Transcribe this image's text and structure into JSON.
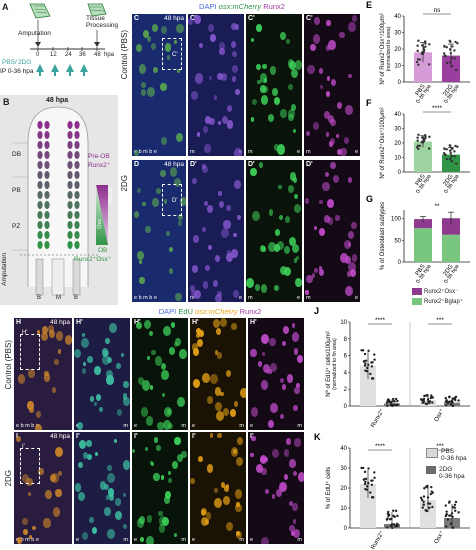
{
  "panel_a": {
    "label": "A",
    "amputation": "Amputation",
    "tissue_processing": "Tissue Processing",
    "ticks": [
      "0",
      "12",
      "24",
      "36",
      "48"
    ],
    "unit": "hpa",
    "treatment_pbs": "PBS",
    "treatment_2dg": "2DG",
    "ip_text": "IP 0-36 hpa"
  },
  "panel_b": {
    "label": "B",
    "time": "48 hpa",
    "zone_db": "DB",
    "zone_pb": "PB",
    "zone_pz": "PZ",
    "bone_b": "B",
    "bone_m": "M",
    "pre_ob": "Pre-OB",
    "pre_ob_marker": "Runx2⁺",
    "ob": "OB",
    "ob_marker": "Runx2⁺Osx⁺",
    "bar_top": "Runx2",
    "bar_bottom": "Osx",
    "amputation": "Amputation"
  },
  "panel_cd": {
    "header_dapi": "DAPI",
    "header_osx": "osx:mCherry",
    "header_runx2": "Runx2",
    "row_c": "Control (PBS)",
    "row_d": "2DG",
    "panels": [
      {
        "id": "C",
        "time": "48 hpa",
        "inset": "C'"
      },
      {
        "id": "C'",
        "time": ""
      },
      {
        "id": "C'",
        "time": ""
      },
      {
        "id": "C'",
        "time": ""
      },
      {
        "id": "D",
        "time": "48 hpa",
        "inset": "D'"
      },
      {
        "id": "D'",
        "time": ""
      },
      {
        "id": "D'",
        "time": ""
      },
      {
        "id": "D'",
        "time": ""
      }
    ],
    "bottom_small": "e b m b e",
    "bottom_me": [
      "m",
      "e"
    ]
  },
  "panel_hi": {
    "header_dapi": "DAPI",
    "header_edu": "EdU",
    "header_osx": "osx:mCherry",
    "header_runx2": "Runx2",
    "row_h": "Control (PBS)",
    "row_i": "2DG",
    "panels": [
      {
        "id": "H",
        "time": "48 hpa",
        "inset": "H'"
      },
      {
        "id": "H'"
      },
      {
        "id": "H'"
      },
      {
        "id": "H'"
      },
      {
        "id": "H'"
      },
      {
        "id": "I",
        "time": "48 hpa",
        "inset": "I'"
      },
      {
        "id": "I'"
      },
      {
        "id": "I'"
      },
      {
        "id": "I'"
      },
      {
        "id": "I'"
      }
    ],
    "bottom_small": "e b m b e",
    "bottom_me": [
      "e",
      "m"
    ]
  },
  "legend_g": {
    "a": {
      "label": "Runx2⁺Osx⁻",
      "color": "#8e3a8e"
    },
    "b": {
      "label": "Runx2⁺Bglap⁺",
      "color": "#79c77f"
    }
  },
  "legend_k": {
    "a": {
      "label": "PBS",
      "sub": "0-36 hpa",
      "color": "#d9d9d9"
    },
    "b": {
      "label": "2DG",
      "sub": "0-36 hpa",
      "color": "#6b6b6b"
    }
  },
  "chart_data": [
    {
      "id": "E",
      "type": "bar",
      "ylabel": "Nº of Runx2⁺Osx⁺/100μm²",
      "ylabel2": "(normalized to area)",
      "ylim": [
        0,
        40
      ],
      "yticks": [
        0,
        10,
        20,
        30,
        40
      ],
      "categories": [
        "PBS",
        "2DG"
      ],
      "category_sub": [
        "0-36 hpa",
        "0-36 hpa"
      ],
      "values": [
        18,
        16
      ],
      "errors": [
        6,
        7
      ],
      "colors": [
        "#d59cd7",
        "#9c3ea0"
      ],
      "significance": "ns"
    },
    {
      "id": "F",
      "type": "bar",
      "ylabel": "Nº of Runx2⁺Osx⁺/100μm²",
      "ylim": [
        0,
        40
      ],
      "yticks": [
        0,
        10,
        20,
        30,
        40
      ],
      "categories": [
        "PBS",
        "2DG"
      ],
      "category_sub": [
        "0-36 hpa",
        "0-36 hpa"
      ],
      "values": [
        21,
        12
      ],
      "errors": [
        4,
        5
      ],
      "colors": [
        "#9dd4a1",
        "#2f9446"
      ],
      "significance": "****"
    },
    {
      "id": "G",
      "type": "bar",
      "ylabel": "% of Osteoblast subtypes",
      "ylim": [
        0,
        120
      ],
      "yticks": [
        0,
        50,
        100
      ],
      "categories": [
        "PBS",
        "2DG"
      ],
      "category_sub": [
        "0-36 hpa",
        "0-36 hpa"
      ],
      "series": [
        {
          "name": "Runx2⁺Bglap⁺",
          "values": [
            78,
            63
          ],
          "color": "#79c77f"
        },
        {
          "name": "Runx2⁺Osx⁻",
          "values": [
            21,
            38
          ],
          "color": "#8e3a8e"
        }
      ],
      "errors": [
        6,
        14
      ],
      "significance": "**"
    },
    {
      "id": "J",
      "type": "bar",
      "ylabel": "Nº of EdU⁺ cells/100μm²",
      "ylabel2": "(normalized to fin area)",
      "ylim": [
        0,
        10
      ],
      "yticks": [
        0,
        2,
        4,
        6,
        8,
        10
      ],
      "categories": [
        "Runx2⁺",
        "Osx⁺"
      ],
      "groups": [
        {
          "name": "Runx2⁺",
          "values": [
            4.8,
            0.3
          ],
          "errors": [
            1.6,
            0.5
          ],
          "significance": "****"
        },
        {
          "name": "Osx⁺",
          "values": [
            0.7,
            0.4
          ],
          "errors": [
            0.5,
            0.6
          ],
          "significance": "***"
        }
      ]
    },
    {
      "id": "K",
      "type": "bar",
      "ylabel": "% of EdU⁺ cells",
      "ylim": [
        0,
        40
      ],
      "yticks": [
        0,
        10,
        20,
        30,
        40
      ],
      "categories": [
        "Runx2⁺",
        "Osx⁺"
      ],
      "groups": [
        {
          "name": "Runx2⁺",
          "values": [
            22,
            2
          ],
          "errors": [
            7,
            6
          ],
          "significance": "****"
        },
        {
          "name": "Osx⁺",
          "values": [
            14,
            5
          ],
          "errors": [
            6,
            7
          ],
          "significance": "***"
        }
      ]
    }
  ]
}
